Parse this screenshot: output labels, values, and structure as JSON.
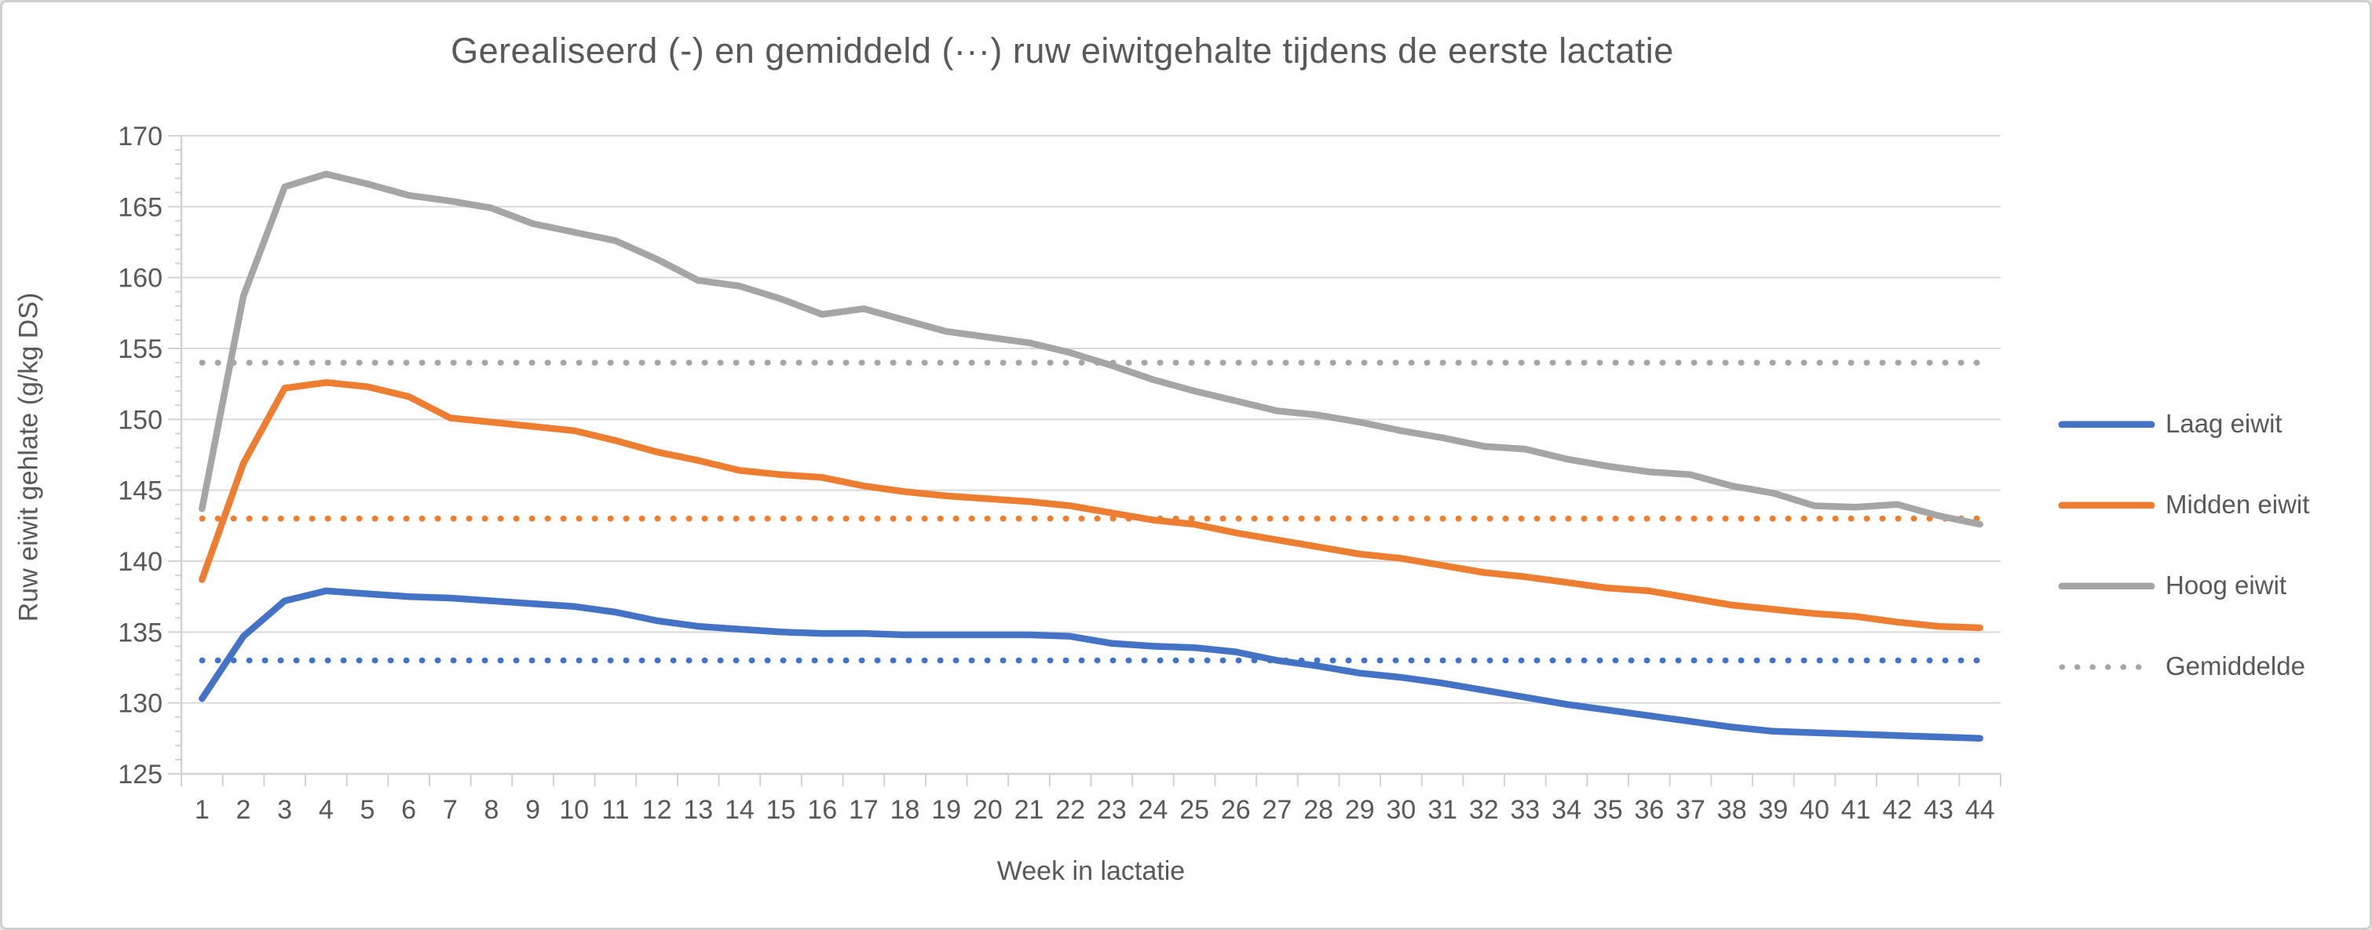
{
  "window": {
    "background_color": "#ffffff",
    "border_color": "#cfcfcf"
  },
  "chart_data": {
    "type": "line",
    "title": "Gerealiseerd (-) en gemiddeld (···) ruw eiwitgehalte tijdens de eerste lactatie",
    "xlabel": "Week in lactatie",
    "ylabel": "Ruw eiwit gehlate (g/kg DS)",
    "ylim": [
      125,
      170
    ],
    "ytick_step": 5,
    "ytick_labels": [
      "125",
      "130",
      "135",
      "140",
      "145",
      "150",
      "155",
      "160",
      "165",
      "170"
    ],
    "grid": "horizontal",
    "legend_position": "right",
    "text_color": "#595959",
    "gridline_color": "#D9D9D9",
    "axis_color": "#D2D2D2",
    "categories": [
      1,
      2,
      3,
      4,
      5,
      6,
      7,
      8,
      9,
      10,
      11,
      12,
      13,
      14,
      15,
      16,
      17,
      18,
      19,
      20,
      21,
      22,
      23,
      24,
      25,
      26,
      27,
      28,
      29,
      30,
      31,
      32,
      33,
      34,
      35,
      36,
      37,
      38,
      39,
      40,
      41,
      42,
      43,
      44
    ],
    "series": [
      {
        "name": "Laag eiwit",
        "color": "#4472C4",
        "style": "solid",
        "values": [
          130.3,
          134.7,
          137.2,
          137.9,
          137.7,
          137.5,
          137.4,
          137.2,
          137.0,
          136.8,
          136.4,
          135.8,
          135.4,
          135.2,
          135.0,
          134.9,
          134.9,
          134.8,
          134.8,
          134.8,
          134.8,
          134.7,
          134.2,
          134.0,
          133.9,
          133.6,
          133.0,
          132.6,
          132.1,
          131.8,
          131.4,
          130.9,
          130.4,
          129.9,
          129.5,
          129.1,
          128.7,
          128.3,
          128.0,
          127.9,
          127.8,
          127.7,
          127.6,
          127.5
        ]
      },
      {
        "name": "Midden eiwit",
        "color": "#ED7D31",
        "style": "solid",
        "values": [
          138.7,
          146.9,
          152.2,
          152.6,
          152.3,
          151.6,
          150.1,
          149.8,
          149.5,
          149.2,
          148.5,
          147.7,
          147.1,
          146.4,
          146.1,
          145.9,
          145.3,
          144.9,
          144.6,
          144.4,
          144.2,
          143.9,
          143.4,
          142.9,
          142.6,
          142.0,
          141.5,
          141.0,
          140.5,
          140.2,
          139.7,
          139.2,
          138.9,
          138.5,
          138.1,
          137.9,
          137.4,
          136.9,
          136.6,
          136.3,
          136.1,
          135.7,
          135.4,
          135.3
        ]
      },
      {
        "name": "Hoog eiwit",
        "color": "#A5A5A5",
        "style": "solid",
        "values": [
          143.7,
          158.7,
          166.4,
          167.3,
          166.6,
          165.8,
          165.4,
          164.9,
          163.8,
          163.2,
          162.6,
          161.3,
          159.8,
          159.4,
          158.5,
          157.4,
          157.8,
          157.0,
          156.2,
          155.8,
          155.4,
          154.7,
          153.8,
          152.8,
          152.0,
          151.3,
          150.6,
          150.3,
          149.8,
          149.2,
          148.7,
          148.1,
          147.9,
          147.2,
          146.7,
          146.3,
          146.1,
          145.3,
          144.8,
          143.9,
          143.8,
          144.0,
          143.2,
          142.6
        ]
      }
    ],
    "averages": {
      "legend_label": "Gemiddelde",
      "style": "dotted",
      "legend_color": "#A5A5A5",
      "lines": [
        {
          "series": "Laag eiwit",
          "value": 133,
          "color": "#4472C4"
        },
        {
          "series": "Midden eiwit",
          "value": 143,
          "color": "#ED7D31"
        },
        {
          "series": "Hoog eiwit",
          "value": 154,
          "color": "#A5A5A5"
        }
      ]
    }
  }
}
